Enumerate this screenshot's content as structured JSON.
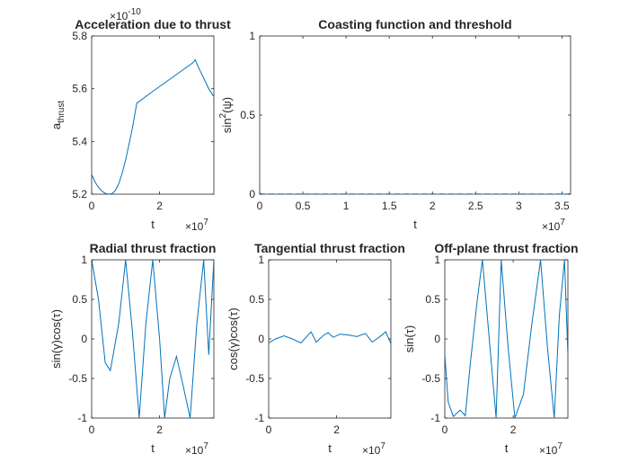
{
  "figure": {
    "background": "#ffffff",
    "line_color": "#0072bd",
    "threshold_color": "#d95319"
  },
  "chart_data": [
    {
      "id": "p1",
      "type": "line",
      "title": "Acceleration due to thrust",
      "xlabel": "t",
      "ylabel": "a",
      "ylabel_sub": "thrust",
      "x_exponent": "×10",
      "x_exponent_power": "7",
      "y_exponent": "×10",
      "y_exponent_power": "-10",
      "xlim": [
        0,
        3.6
      ],
      "ylim": [
        5.2,
        5.8
      ],
      "xticks": [
        0,
        2
      ],
      "xtick_labels": [
        "0",
        "2"
      ],
      "yticks": [
        5.2,
        5.4,
        5.6,
        5.8
      ],
      "ytick_labels": [
        "5.2",
        "5.4",
        "5.6",
        "5.8"
      ],
      "series": [
        {
          "x": [
            0,
            0.1,
            0.2,
            0.3,
            0.4,
            0.5,
            0.6,
            0.7,
            0.8,
            0.9,
            1.0,
            1.1,
            1.2,
            1.33,
            1.8,
            2.4,
            3.0,
            3.05,
            3.15,
            3.3,
            3.45,
            3.6
          ],
          "y": [
            5.275,
            5.246,
            5.226,
            5.212,
            5.203,
            5.2,
            5.202,
            5.214,
            5.24,
            5.28,
            5.33,
            5.39,
            5.45,
            5.545,
            5.59,
            5.645,
            5.7,
            5.71,
            5.68,
            5.64,
            5.6,
            5.57
          ]
        }
      ]
    },
    {
      "id": "p2",
      "type": "line",
      "title": "Coasting function and threshold",
      "xlabel": "t",
      "ylabel": "sin",
      "ylabel_sup": "2",
      "ylabel_arg": "(ψ)",
      "x_exponent": "×10",
      "x_exponent_power": "7",
      "xlim": [
        0,
        3.6
      ],
      "ylim": [
        0,
        1
      ],
      "xticks": [
        0,
        0.5,
        1,
        1.5,
        2,
        2.5,
        3,
        3.5
      ],
      "xtick_labels": [
        "0",
        "0.5",
        "1",
        "1.5",
        "2",
        "2.5",
        "3",
        "3.5"
      ],
      "yticks": [
        0,
        0.5,
        1
      ],
      "ytick_labels": [
        "0",
        "0.5",
        "1"
      ],
      "series": [
        {
          "x": [
            0,
            3.6
          ],
          "y": [
            0,
            0
          ],
          "style": "solid"
        },
        {
          "x": [
            0,
            3.6
          ],
          "y": [
            0.002,
            0.002
          ],
          "style": "dashed"
        }
      ]
    },
    {
      "id": "p3",
      "type": "line",
      "title": "Radial thrust fraction",
      "xlabel": "t",
      "ylabel": "sin(γ)cos(τ)",
      "x_exponent": "×10",
      "x_exponent_power": "7",
      "xlim": [
        0,
        3.6
      ],
      "ylim": [
        -1,
        1
      ],
      "xticks": [
        0,
        2
      ],
      "xtick_labels": [
        "0",
        "2"
      ],
      "yticks": [
        -1,
        -0.5,
        0,
        0.5,
        1
      ],
      "ytick_labels": [
        "-1",
        "-0.5",
        "0",
        "0.5",
        "1"
      ],
      "series": [
        {
          "x": [
            0,
            0.2,
            0.4,
            0.55,
            0.8,
            1.0,
            1.2,
            1.4,
            1.6,
            1.8,
            2.0,
            2.15,
            2.3,
            2.5,
            2.7,
            2.9,
            3.1,
            3.3,
            3.45,
            3.6
          ],
          "y": [
            1,
            0.5,
            -0.3,
            -0.4,
            0.2,
            1,
            0.1,
            -1,
            0.2,
            1,
            0.0,
            -1,
            -0.5,
            -0.22,
            -0.6,
            -1,
            0.2,
            1,
            -0.2,
            1
          ]
        }
      ]
    },
    {
      "id": "p4",
      "type": "line",
      "title": "Tangential thrust fraction",
      "xlabel": "t",
      "ylabel": "cos(γ)cos(τ)",
      "x_exponent": "×10",
      "x_exponent_power": "7",
      "xlim": [
        0,
        3.6
      ],
      "ylim": [
        -1,
        1
      ],
      "xticks": [
        0,
        2
      ],
      "xtick_labels": [
        "0",
        "2"
      ],
      "yticks": [
        -1,
        -0.5,
        0,
        0.5,
        1
      ],
      "ytick_labels": [
        "-1",
        "-0.5",
        "0",
        "0.5",
        "1"
      ],
      "series": [
        {
          "x": [
            0,
            0.2,
            0.45,
            0.7,
            0.95,
            1.1,
            1.25,
            1.4,
            1.6,
            1.75,
            1.9,
            2.1,
            2.35,
            2.6,
            2.85,
            3.05,
            3.25,
            3.45,
            3.6
          ],
          "y": [
            -0.05,
            0.0,
            0.04,
            0.0,
            -0.05,
            0.02,
            0.09,
            -0.04,
            0.04,
            0.08,
            0.02,
            0.06,
            0.05,
            0.03,
            0.07,
            -0.04,
            0.02,
            0.09,
            -0.06
          ]
        }
      ]
    },
    {
      "id": "p5",
      "type": "line",
      "title": "Off-plane thrust fraction",
      "xlabel": "t",
      "ylabel": "sin(τ)",
      "x_exponent": "×10",
      "x_exponent_power": "7",
      "xlim": [
        0,
        3.6
      ],
      "ylim": [
        -1,
        1
      ],
      "xticks": [
        0,
        2
      ],
      "xtick_labels": [
        "0",
        "2"
      ],
      "yticks": [
        -1,
        -0.5,
        0,
        0.5,
        1
      ],
      "ytick_labels": [
        "-1",
        "-0.5",
        "0",
        "0.5",
        "1"
      ],
      "series": [
        {
          "x": [
            0,
            0.1,
            0.25,
            0.45,
            0.6,
            0.75,
            0.95,
            1.1,
            1.3,
            1.5,
            1.65,
            1.85,
            2.05,
            2.3,
            2.55,
            2.8,
            3.0,
            3.2,
            3.35,
            3.5,
            3.6
          ],
          "y": [
            -0.2,
            -0.8,
            -0.98,
            -0.9,
            -0.97,
            -0.3,
            0.5,
            1,
            0.0,
            -1,
            1,
            -0.1,
            -1,
            -0.7,
            0.2,
            1,
            -0.1,
            -1,
            0.3,
            1,
            -0.2
          ]
        }
      ]
    }
  ]
}
